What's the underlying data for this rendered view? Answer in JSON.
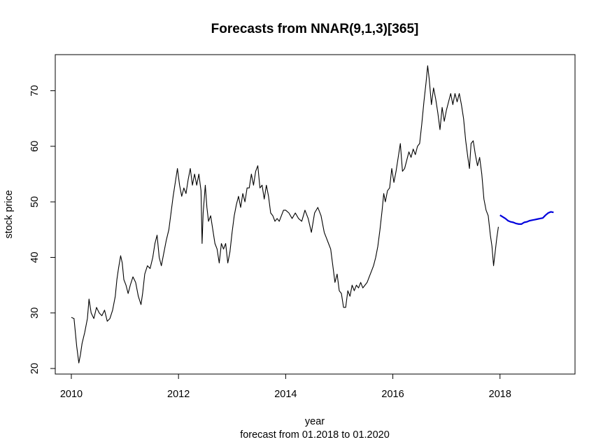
{
  "chart_data": {
    "type": "line",
    "title": "Forecasts from NNAR(9,1,3)[365]",
    "xlabel": "year",
    "subtitle": "forecast from 01.2018 to 01.2020",
    "ylabel": "stock price",
    "xlim": [
      2009.7,
      2019.4
    ],
    "ylim": [
      19,
      76.5
    ],
    "x_ticks": [
      2010,
      2012,
      2014,
      2016,
      2018
    ],
    "y_ticks": [
      20,
      30,
      40,
      50,
      60,
      70
    ],
    "x_tick_labels": [
      "2010",
      "2012",
      "2014",
      "2016",
      "2018"
    ],
    "y_tick_labels": [
      "20",
      "30",
      "40",
      "50",
      "60",
      "70"
    ],
    "series": [
      {
        "role": "history",
        "color": "#000000",
        "points": [
          [
            2010.0,
            29.2
          ],
          [
            2010.05,
            29.0
          ],
          [
            2010.08,
            26.0
          ],
          [
            2010.1,
            24.0
          ],
          [
            2010.12,
            22.5
          ],
          [
            2010.14,
            21.0
          ],
          [
            2010.17,
            22.5
          ],
          [
            2010.2,
            24.5
          ],
          [
            2010.25,
            26.5
          ],
          [
            2010.3,
            29.0
          ],
          [
            2010.33,
            32.5
          ],
          [
            2010.37,
            30.0
          ],
          [
            2010.42,
            29.0
          ],
          [
            2010.47,
            31.0
          ],
          [
            2010.52,
            30.0
          ],
          [
            2010.57,
            29.5
          ],
          [
            2010.62,
            30.5
          ],
          [
            2010.67,
            28.5
          ],
          [
            2010.72,
            29.0
          ],
          [
            2010.77,
            30.5
          ],
          [
            2010.82,
            33.0
          ],
          [
            2010.85,
            36.0
          ],
          [
            2010.88,
            38.0
          ],
          [
            2010.92,
            40.3
          ],
          [
            2010.95,
            39.0
          ],
          [
            2010.98,
            36.0
          ],
          [
            2011.02,
            35.0
          ],
          [
            2011.06,
            33.5
          ],
          [
            2011.1,
            35.0
          ],
          [
            2011.15,
            36.5
          ],
          [
            2011.2,
            35.5
          ],
          [
            2011.25,
            33.0
          ],
          [
            2011.3,
            31.5
          ],
          [
            2011.33,
            33.5
          ],
          [
            2011.37,
            37.0
          ],
          [
            2011.42,
            38.5
          ],
          [
            2011.47,
            38.0
          ],
          [
            2011.52,
            40.0
          ],
          [
            2011.56,
            42.5
          ],
          [
            2011.6,
            44.0
          ],
          [
            2011.64,
            40.0
          ],
          [
            2011.68,
            38.5
          ],
          [
            2011.72,
            40.5
          ],
          [
            2011.77,
            43.0
          ],
          [
            2011.82,
            45.0
          ],
          [
            2011.86,
            48.0
          ],
          [
            2011.9,
            51.0
          ],
          [
            2011.94,
            53.5
          ],
          [
            2011.98,
            56.0
          ],
          [
            2012.02,
            53.0
          ],
          [
            2012.06,
            51.0
          ],
          [
            2012.1,
            52.5
          ],
          [
            2012.14,
            51.5
          ],
          [
            2012.18,
            54.0
          ],
          [
            2012.22,
            56.0
          ],
          [
            2012.26,
            53.0
          ],
          [
            2012.3,
            55.0
          ],
          [
            2012.34,
            53.0
          ],
          [
            2012.38,
            55.0
          ],
          [
            2012.42,
            52.0
          ],
          [
            2012.44,
            42.5
          ],
          [
            2012.46,
            48.0
          ],
          [
            2012.5,
            53.0
          ],
          [
            2012.53,
            49.0
          ],
          [
            2012.56,
            46.5
          ],
          [
            2012.6,
            47.5
          ],
          [
            2012.64,
            45.0
          ],
          [
            2012.68,
            42.5
          ],
          [
            2012.72,
            41.5
          ],
          [
            2012.76,
            39.0
          ],
          [
            2012.8,
            42.5
          ],
          [
            2012.84,
            41.5
          ],
          [
            2012.88,
            42.5
          ],
          [
            2012.92,
            39.0
          ],
          [
            2012.96,
            41.0
          ],
          [
            2013.0,
            44.5
          ],
          [
            2013.04,
            47.5
          ],
          [
            2013.08,
            49.5
          ],
          [
            2013.12,
            51.0
          ],
          [
            2013.16,
            49.0
          ],
          [
            2013.2,
            51.5
          ],
          [
            2013.24,
            50.0
          ],
          [
            2013.28,
            52.5
          ],
          [
            2013.32,
            52.5
          ],
          [
            2013.36,
            55.0
          ],
          [
            2013.4,
            53.0
          ],
          [
            2013.44,
            55.5
          ],
          [
            2013.48,
            56.5
          ],
          [
            2013.52,
            52.5
          ],
          [
            2013.56,
            53.0
          ],
          [
            2013.6,
            50.5
          ],
          [
            2013.64,
            53.0
          ],
          [
            2013.68,
            51.0
          ],
          [
            2013.72,
            48.0
          ],
          [
            2013.76,
            47.5
          ],
          [
            2013.8,
            46.5
          ],
          [
            2013.84,
            47.0
          ],
          [
            2013.88,
            46.5
          ],
          [
            2013.92,
            47.5
          ],
          [
            2013.96,
            48.5
          ],
          [
            2014.0,
            48.5
          ],
          [
            2014.06,
            48.0
          ],
          [
            2014.12,
            47.0
          ],
          [
            2014.18,
            48.0
          ],
          [
            2014.24,
            47.0
          ],
          [
            2014.3,
            46.5
          ],
          [
            2014.36,
            48.5
          ],
          [
            2014.42,
            47.0
          ],
          [
            2014.48,
            44.5
          ],
          [
            2014.54,
            48.0
          ],
          [
            2014.6,
            49.0
          ],
          [
            2014.66,
            47.5
          ],
          [
            2014.72,
            44.5
          ],
          [
            2014.76,
            43.5
          ],
          [
            2014.8,
            42.5
          ],
          [
            2014.84,
            41.5
          ],
          [
            2014.88,
            38.5
          ],
          [
            2014.92,
            35.5
          ],
          [
            2014.96,
            37.0
          ],
          [
            2015.0,
            34.0
          ],
          [
            2015.04,
            33.5
          ],
          [
            2015.08,
            31.0
          ],
          [
            2015.12,
            31.0
          ],
          [
            2015.16,
            34.0
          ],
          [
            2015.2,
            33.0
          ],
          [
            2015.24,
            35.0
          ],
          [
            2015.28,
            34.0
          ],
          [
            2015.32,
            35.0
          ],
          [
            2015.36,
            34.5
          ],
          [
            2015.4,
            35.5
          ],
          [
            2015.44,
            34.5
          ],
          [
            2015.48,
            35.0
          ],
          [
            2015.52,
            35.5
          ],
          [
            2015.56,
            36.5
          ],
          [
            2015.6,
            37.5
          ],
          [
            2015.64,
            38.5
          ],
          [
            2015.68,
            40.0
          ],
          [
            2015.72,
            42.0
          ],
          [
            2015.76,
            45.0
          ],
          [
            2015.8,
            48.5
          ],
          [
            2015.83,
            51.5
          ],
          [
            2015.86,
            50.0
          ],
          [
            2015.9,
            52.0
          ],
          [
            2015.94,
            52.5
          ],
          [
            2015.98,
            56.0
          ],
          [
            2016.02,
            53.5
          ],
          [
            2016.06,
            55.5
          ],
          [
            2016.1,
            58.0
          ],
          [
            2016.14,
            60.5
          ],
          [
            2016.18,
            55.5
          ],
          [
            2016.22,
            56.0
          ],
          [
            2016.26,
            57.5
          ],
          [
            2016.3,
            59.0
          ],
          [
            2016.34,
            58.0
          ],
          [
            2016.38,
            59.5
          ],
          [
            2016.42,
            58.5
          ],
          [
            2016.46,
            60.0
          ],
          [
            2016.5,
            60.5
          ],
          [
            2016.54,
            64.0
          ],
          [
            2016.58,
            68.0
          ],
          [
            2016.62,
            71.5
          ],
          [
            2016.65,
            74.5
          ],
          [
            2016.68,
            72.0
          ],
          [
            2016.72,
            67.5
          ],
          [
            2016.76,
            70.5
          ],
          [
            2016.8,
            68.5
          ],
          [
            2016.84,
            66.0
          ],
          [
            2016.88,
            63.0
          ],
          [
            2016.92,
            67.0
          ],
          [
            2016.96,
            64.5
          ],
          [
            2017.0,
            66.5
          ],
          [
            2017.04,
            68.0
          ],
          [
            2017.08,
            69.5
          ],
          [
            2017.12,
            67.5
          ],
          [
            2017.16,
            69.5
          ],
          [
            2017.2,
            68.0
          ],
          [
            2017.24,
            69.5
          ],
          [
            2017.28,
            67.5
          ],
          [
            2017.32,
            65.0
          ],
          [
            2017.36,
            61.0
          ],
          [
            2017.4,
            58.0
          ],
          [
            2017.43,
            56.0
          ],
          [
            2017.46,
            60.5
          ],
          [
            2017.5,
            61.0
          ],
          [
            2017.54,
            58.5
          ],
          [
            2017.58,
            56.5
          ],
          [
            2017.62,
            58.0
          ],
          [
            2017.66,
            55.0
          ],
          [
            2017.7,
            50.5
          ],
          [
            2017.74,
            48.5
          ],
          [
            2017.78,
            47.5
          ],
          [
            2017.82,
            44.0
          ],
          [
            2017.85,
            42.0
          ],
          [
            2017.88,
            38.5
          ],
          [
            2017.91,
            41.0
          ],
          [
            2017.94,
            43.5
          ],
          [
            2017.97,
            45.5
          ]
        ]
      },
      {
        "role": "forecast",
        "color": "#0000dd",
        "points": [
          [
            2018.0,
            47.6
          ],
          [
            2018.05,
            47.3
          ],
          [
            2018.1,
            47.0
          ],
          [
            2018.15,
            46.6
          ],
          [
            2018.2,
            46.4
          ],
          [
            2018.25,
            46.3
          ],
          [
            2018.3,
            46.1
          ],
          [
            2018.35,
            46.0
          ],
          [
            2018.4,
            46.0
          ],
          [
            2018.45,
            46.3
          ],
          [
            2018.5,
            46.4
          ],
          [
            2018.55,
            46.6
          ],
          [
            2018.6,
            46.7
          ],
          [
            2018.65,
            46.8
          ],
          [
            2018.7,
            46.9
          ],
          [
            2018.75,
            47.0
          ],
          [
            2018.8,
            47.1
          ],
          [
            2018.85,
            47.6
          ],
          [
            2018.9,
            48.0
          ],
          [
            2018.95,
            48.2
          ],
          [
            2019.0,
            48.1
          ]
        ]
      }
    ]
  }
}
